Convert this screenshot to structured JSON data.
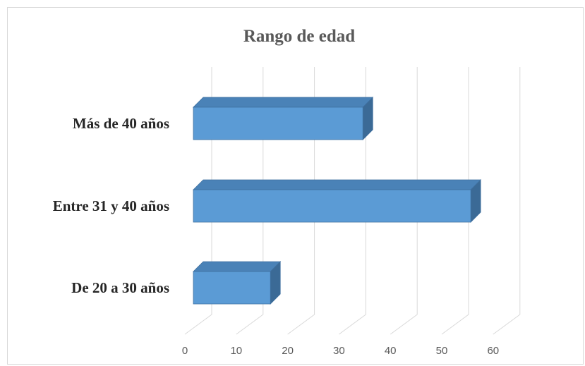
{
  "chart_data": {
    "type": "bar",
    "orientation": "horizontal",
    "style": "3d-clustered",
    "title": "Rango de edad",
    "categories": [
      "De 20 a 30 años",
      "Entre 31 y 40 años",
      "Más de 40 años"
    ],
    "values": [
      15,
      54,
      33
    ],
    "xlim": [
      0,
      60
    ],
    "xticks": [
      "0",
      "10",
      "20",
      "30",
      "40",
      "50",
      "60"
    ],
    "xlabel": "",
    "ylabel": "",
    "grid": true,
    "legend": "none",
    "colors": {
      "bar_front": "#5b9bd5",
      "bar_top": "#4a82b7",
      "bar_side": "#3b6a96",
      "bar_edge": "#3f70a0",
      "gridline": "#d9d9d9"
    }
  }
}
